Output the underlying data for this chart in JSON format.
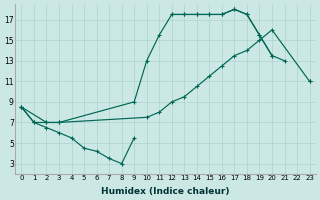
{
  "xlabel": "Humidex (Indice chaleur)",
  "bg_color": "#cce8e4",
  "grid_color": "#aad4cc",
  "line_color": "#006655",
  "xlim": [
    -0.5,
    23.5
  ],
  "ylim": [
    2,
    18.5
  ],
  "xticks": [
    0,
    1,
    2,
    3,
    4,
    5,
    6,
    7,
    8,
    9,
    10,
    11,
    12,
    13,
    14,
    15,
    16,
    17,
    18,
    19,
    20,
    21,
    22,
    23
  ],
  "yticks": [
    3,
    5,
    7,
    9,
    11,
    13,
    15,
    17
  ],
  "curves": [
    {
      "x": [
        0,
        1,
        2,
        3,
        4,
        5,
        6,
        7,
        8,
        9
      ],
      "y": [
        8.5,
        7.0,
        6.5,
        6.0,
        5.5,
        4.5,
        4.2,
        3.5,
        3.0,
        5.5
      ]
    },
    {
      "x": [
        0,
        1,
        2,
        3,
        9,
        10,
        11,
        12,
        13,
        14,
        15,
        16,
        17,
        18,
        19,
        20,
        21
      ],
      "y": [
        8.5,
        7.0,
        7.0,
        7.0,
        9.0,
        13.0,
        15.5,
        17.5,
        17.5,
        17.5,
        17.5,
        17.5,
        18.0,
        17.5,
        15.5,
        13.5,
        13.0
      ]
    },
    {
      "x": [
        0,
        2,
        3,
        10,
        11,
        12,
        13,
        14,
        15,
        16,
        17,
        18,
        19,
        20,
        23
      ],
      "y": [
        8.5,
        7.0,
        7.0,
        7.5,
        8.0,
        9.0,
        9.5,
        10.5,
        11.5,
        12.5,
        13.5,
        14.0,
        15.0,
        16.0,
        11.0
      ]
    },
    {
      "x": [
        12,
        13,
        14,
        15,
        16,
        17,
        18,
        19,
        20,
        21,
        23
      ],
      "y": [
        17.5,
        17.5,
        17.5,
        17.5,
        17.5,
        18.0,
        17.5,
        15.5,
        13.5,
        null,
        11.0
      ]
    }
  ]
}
